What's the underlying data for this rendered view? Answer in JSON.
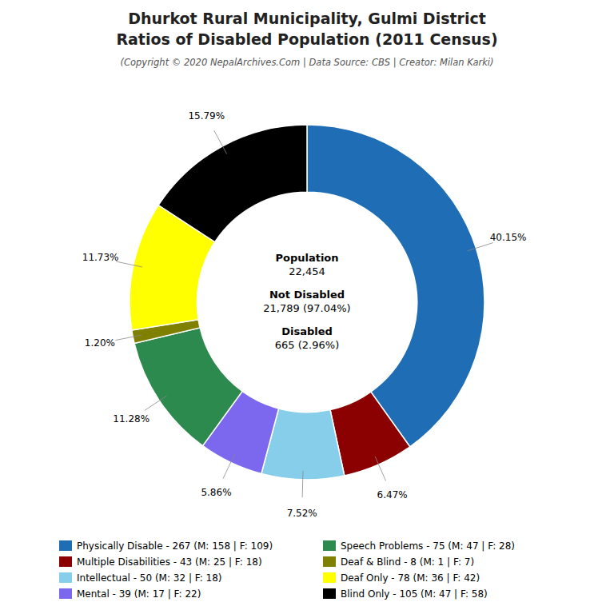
{
  "chart_data": {
    "type": "pie",
    "title": [
      "Dhurkot Rural Municipality, Gulmi District",
      "Ratios of Disabled Population (2011 Census)"
    ],
    "subtitle": "(Copyright © 2020 NepalArchives.Com | Data Source: CBS | Creator: Milan Karki)",
    "categories": [
      "Physically Disable - 267 (M: 158 | F: 109)",
      "Multiple Disabilities - 43 (M: 25 | F: 18)",
      "Intellectual - 50 (M: 32 | F: 18)",
      "Mental - 39 (M: 17 | F: 22)",
      "Speech Problems - 75 (M: 47 | F: 28)",
      "Deaf & Blind - 8 (M: 1 | F: 7)",
      "Deaf Only - 78 (M: 36 | F: 42)",
      "Blind Only - 105 (M: 47 | F: 58)"
    ],
    "values": [
      40.15,
      6.47,
      7.52,
      5.86,
      11.28,
      1.2,
      11.73,
      15.79
    ],
    "value_labels": [
      "40.15%",
      "6.47%",
      "7.52%",
      "5.86%",
      "11.28%",
      "1.20%",
      "11.73%",
      "15.79%"
    ],
    "colors": [
      "#1f6eb5",
      "#8b0000",
      "#87ceeb",
      "#7b68ee",
      "#2d8a4e",
      "#808000",
      "#ffff00",
      "#000000"
    ],
    "annotations": [
      "Population",
      "22,454",
      "Not Disabled",
      "21,789 (97.04%)",
      "Disabled",
      "665 (2.96%)"
    ],
    "data_labels": true,
    "legend": "bottom"
  }
}
